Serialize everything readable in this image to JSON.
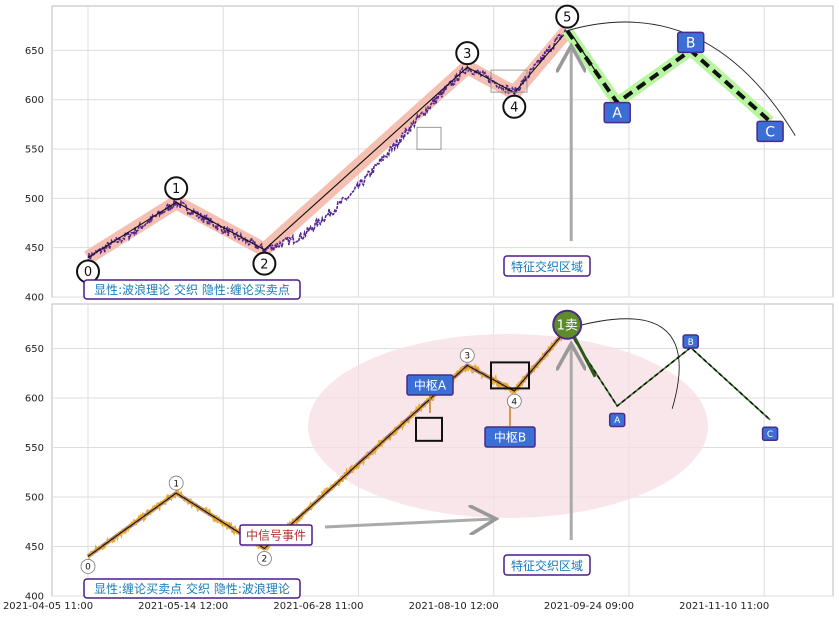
{
  "chart_data": [
    {
      "type": "line",
      "panel": "top",
      "x_ticks": [
        "2021-04-05 11:00",
        "2021-05-14 12:00",
        "2021-06-28 11:00",
        "2021-08-10 12:00",
        "2021-09-24 09:00",
        "2021-11-10 11:00"
      ],
      "y_ticks": [
        400,
        450,
        500,
        550,
        600,
        650
      ],
      "ylim": [
        400,
        695
      ],
      "grid": true,
      "series": [
        {
          "name": "",
          "x": [
            0,
            15,
            30,
            45,
            60,
            73,
            90,
            112,
            129,
            145,
            160,
            163,
            175,
            190
          ],
          "y": [
            440,
            465,
            496,
            470,
            448,
            462,
            505,
            580,
            633,
            607,
            662,
            670,
            672,
            660
          ]
        }
      ],
      "wave_points": [
        {
          "label": "0",
          "x": 0,
          "y": 440
        },
        {
          "label": "1",
          "x": 30,
          "y": 496
        },
        {
          "label": "2",
          "x": 60,
          "y": 448
        },
        {
          "label": "3",
          "x": 129,
          "y": 633
        },
        {
          "label": "4",
          "x": 145,
          "y": 607
        },
        {
          "label": "5",
          "x": 163,
          "y": 670
        }
      ],
      "projection": [
        {
          "label": "A",
          "x": 180,
          "y": 597
        },
        {
          "label": "B",
          "x": 205,
          "y": 650
        },
        {
          "label": "C",
          "x": 232,
          "y": 578
        }
      ],
      "annotations": {
        "legend_box": "显性:波浪理论 交织 隐性:缠论买卖点",
        "region_label": "特征交织区域"
      }
    },
    {
      "type": "line",
      "panel": "bottom",
      "y_ticks": [
        400,
        450,
        500,
        550,
        600,
        650
      ],
      "ylim": [
        400,
        695
      ],
      "grid": true,
      "wave_points": [
        {
          "label": "0",
          "x": 0,
          "y": 440
        },
        {
          "label": "1",
          "x": 30,
          "y": 504
        },
        {
          "label": "2",
          "x": 60,
          "y": 448
        },
        {
          "label": "3",
          "x": 129,
          "y": 633
        },
        {
          "label": "4",
          "x": 145,
          "y": 607
        },
        {
          "label": "1卖",
          "x": 163,
          "y": 670
        }
      ],
      "projection": [
        {
          "label": "A",
          "x": 180,
          "y": 592
        },
        {
          "label": "B",
          "x": 205,
          "y": 651
        },
        {
          "label": "C",
          "x": 232,
          "y": 578
        }
      ],
      "annotations": {
        "legend_box": "显性:缠论买卖点 交织 隐性:波浪理论",
        "zhongshu_a": "中枢A",
        "zhongshu_b": "中枢B",
        "signal_event": "中信号事件",
        "region_label": "特征交织区域"
      }
    }
  ],
  "colors": {
    "wave_band": "#f4b8a8",
    "price_top": "#4b1a8c",
    "price_bottom": "#e8a72c",
    "label_fill": "#3b6fd6",
    "label_border": "#4b2a8a",
    "dashed_proj": "#111111",
    "proj_band": "#b8f5a0",
    "ellipse": "#f7dde3",
    "sell_fill": "#5f8c2a"
  }
}
